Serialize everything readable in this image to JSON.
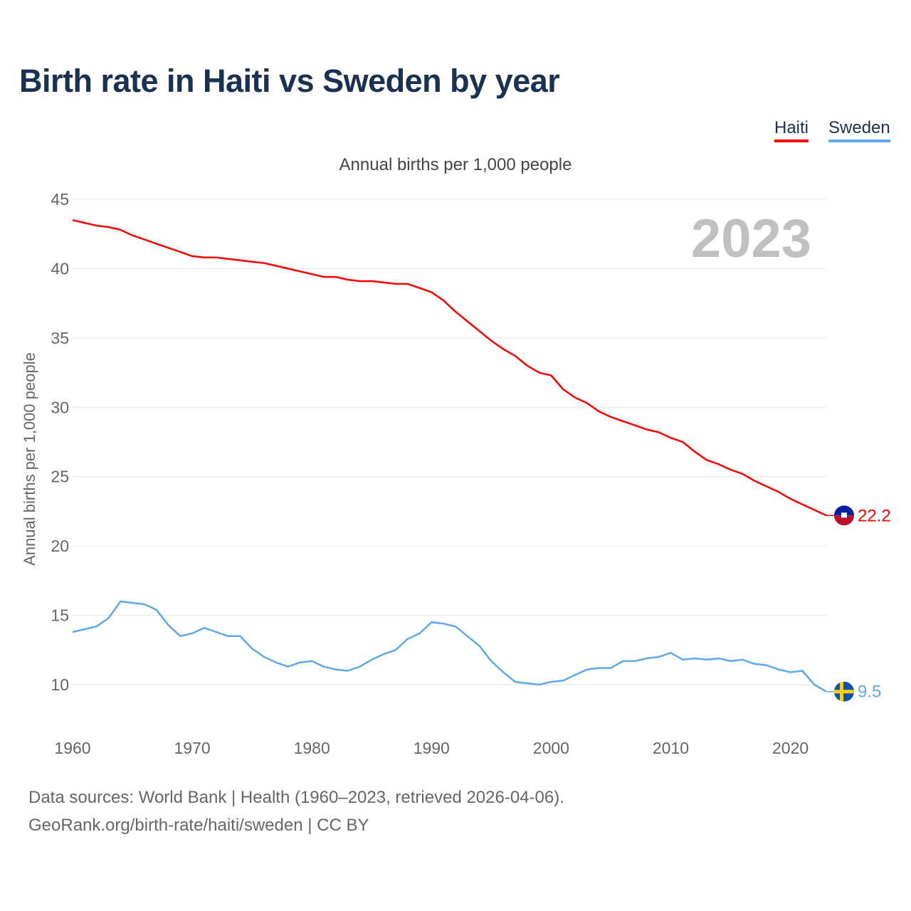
{
  "title": "Birth rate in Haiti vs Sweden by year",
  "legend": [
    {
      "label": "Haiti",
      "color": "#ff0000"
    },
    {
      "label": "Sweden",
      "color": "#5ea8ec"
    }
  ],
  "footer": {
    "line1": "Data sources: World Bank | Health (1960–2023, retrieved 2026-04-06).",
    "line2": "GeoRank.org/birth-rate/haiti/sweden | CC BY"
  },
  "chart_data": {
    "type": "line",
    "title": "Birth rate in Haiti vs Sweden by year",
    "subtitle": "Annual births per 1,000 people",
    "ylabel": "Annual births per 1,000 people",
    "xlabel": "",
    "year_label": "2023",
    "xlim": [
      1960,
      2023
    ],
    "ylim": [
      7.5,
      45
    ],
    "x_ticks": [
      1960,
      1970,
      1980,
      1990,
      2000,
      2010,
      2020
    ],
    "y_ticks": [
      10,
      15,
      20,
      25,
      30,
      35,
      40,
      45
    ],
    "grid": true,
    "legend_position": "top-right",
    "x": [
      1960,
      1961,
      1962,
      1963,
      1964,
      1965,
      1966,
      1967,
      1968,
      1969,
      1970,
      1971,
      1972,
      1973,
      1974,
      1975,
      1976,
      1977,
      1978,
      1979,
      1980,
      1981,
      1982,
      1983,
      1984,
      1985,
      1986,
      1987,
      1988,
      1989,
      1990,
      1991,
      1992,
      1993,
      1994,
      1995,
      1996,
      1997,
      1998,
      1999,
      2000,
      2001,
      2002,
      2003,
      2004,
      2005,
      2006,
      2007,
      2008,
      2009,
      2010,
      2011,
      2012,
      2013,
      2014,
      2015,
      2016,
      2017,
      2018,
      2019,
      2020,
      2021,
      2022,
      2023
    ],
    "series": [
      {
        "name": "Haiti",
        "color": "#ff0000",
        "end_label": "22.2",
        "flag": "haiti-flag",
        "values": [
          43.5,
          43.3,
          43.1,
          43.0,
          42.8,
          42.4,
          42.1,
          41.8,
          41.5,
          41.2,
          40.9,
          40.8,
          40.8,
          40.7,
          40.6,
          40.5,
          40.4,
          40.2,
          40.0,
          39.8,
          39.6,
          39.4,
          39.4,
          39.2,
          39.1,
          39.1,
          39.0,
          38.9,
          38.9,
          38.6,
          38.3,
          37.7,
          36.9,
          36.2,
          35.5,
          34.8,
          34.2,
          33.7,
          33.0,
          32.5,
          32.3,
          31.3,
          30.7,
          30.3,
          29.7,
          29.3,
          29.0,
          28.7,
          28.4,
          28.2,
          27.8,
          27.5,
          26.8,
          26.2,
          25.9,
          25.5,
          25.2,
          24.7,
          24.3,
          23.9,
          23.4,
          23.0,
          22.6,
          22.2
        ]
      },
      {
        "name": "Sweden",
        "color": "#5ea8ec",
        "end_label": "9.5",
        "flag": "sweden-flag",
        "values": [
          13.8,
          14.0,
          14.2,
          14.8,
          16.0,
          15.9,
          15.8,
          15.4,
          14.3,
          13.5,
          13.7,
          14.1,
          13.8,
          13.5,
          13.5,
          12.6,
          12.0,
          11.6,
          11.3,
          11.6,
          11.7,
          11.3,
          11.1,
          11.0,
          11.3,
          11.8,
          12.2,
          12.5,
          13.3,
          13.7,
          14.5,
          14.4,
          14.2,
          13.5,
          12.8,
          11.7,
          10.9,
          10.2,
          10.1,
          10.0,
          10.2,
          10.3,
          10.7,
          11.1,
          11.2,
          11.2,
          11.7,
          11.7,
          11.9,
          12.0,
          12.3,
          11.8,
          11.9,
          11.8,
          11.9,
          11.7,
          11.8,
          11.5,
          11.4,
          11.1,
          10.9,
          11.0,
          10.0,
          9.5
        ]
      }
    ]
  }
}
